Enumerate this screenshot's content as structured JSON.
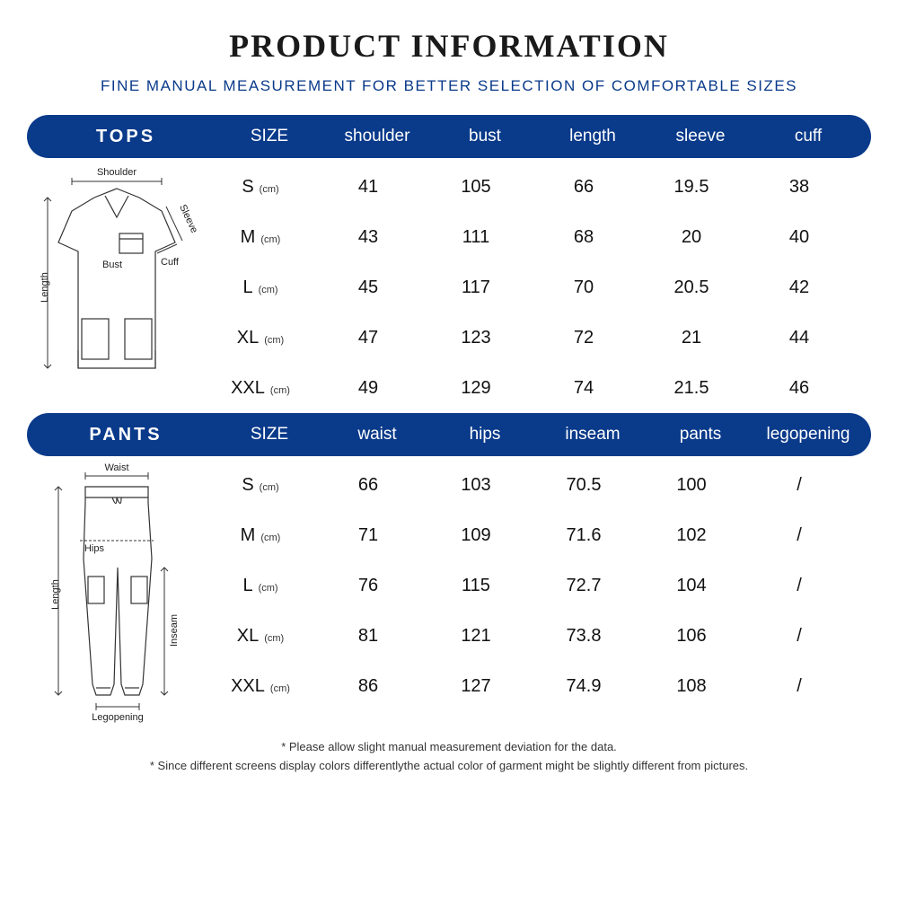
{
  "colors": {
    "header_bg": "#0a3a8a",
    "header_text": "#ffffff",
    "subtitle": "#0a3a8a",
    "page_bg": "#ffffff",
    "text": "#111111"
  },
  "title": "PRODUCT INFORMATION",
  "subtitle": "FINE MANUAL MEASUREMENT FOR BETTER SELECTION OF COMFORTABLE SIZES",
  "unit_label": "(cm)",
  "tops": {
    "label": "TOPS",
    "columns": [
      "SIZE",
      "shoulder",
      "bust",
      "length",
      "sleeve",
      "cuff"
    ],
    "rows": [
      {
        "size": "S",
        "v": [
          "41",
          "105",
          "66",
          "19.5",
          "38"
        ]
      },
      {
        "size": "M",
        "v": [
          "43",
          "111",
          "68",
          "20",
          "40"
        ]
      },
      {
        "size": "L",
        "v": [
          "45",
          "117",
          "70",
          "20.5",
          "42"
        ]
      },
      {
        "size": "XL",
        "v": [
          "47",
          "123",
          "72",
          "21",
          "44"
        ]
      },
      {
        "size": "XXL",
        "v": [
          "49",
          "129",
          "74",
          "21.5",
          "46"
        ]
      }
    ],
    "diagram_labels": {
      "shoulder": "Shoulder",
      "sleeve": "Sleeve",
      "bust": "Bust",
      "cuff": "Cuff",
      "length": "Length"
    }
  },
  "pants": {
    "label": "PANTS",
    "columns": [
      "SIZE",
      "waist",
      "hips",
      "inseam",
      "pants",
      "legopening"
    ],
    "rows": [
      {
        "size": "S",
        "v": [
          "66",
          "103",
          "70.5",
          "100",
          "/"
        ]
      },
      {
        "size": "M",
        "v": [
          "71",
          "109",
          "71.6",
          "102",
          "/"
        ]
      },
      {
        "size": "L",
        "v": [
          "76",
          "115",
          "72.7",
          "104",
          "/"
        ]
      },
      {
        "size": "XL",
        "v": [
          "81",
          "121",
          "73.8",
          "106",
          "/"
        ]
      },
      {
        "size": "XXL",
        "v": [
          "86",
          "127",
          "74.9",
          "108",
          "/"
        ]
      }
    ],
    "diagram_labels": {
      "waist": "Waist",
      "hips": "Hips",
      "inseam": "Inseam",
      "length": "Length",
      "legopening": "Legopening"
    }
  },
  "footnotes": [
    "* Please allow slight manual measurement deviation for the data.",
    "* Since different screens display colors differentlythe actual color of garment might be slightly  different from pictures."
  ]
}
